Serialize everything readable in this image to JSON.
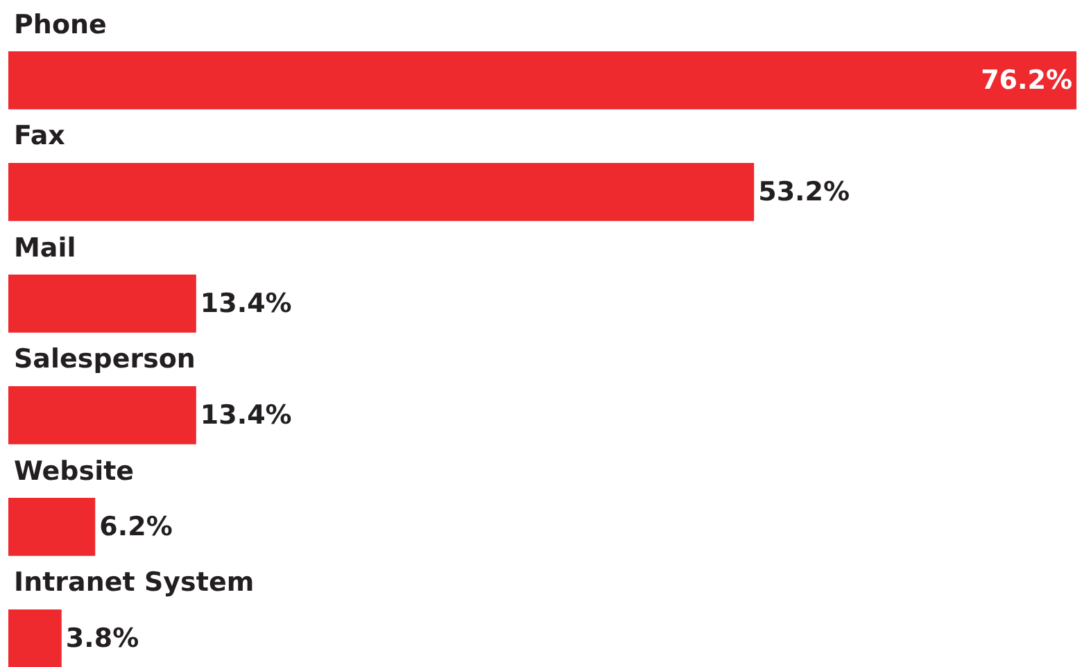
{
  "chart_data": {
    "type": "bar",
    "orientation": "horizontal",
    "categories": [
      "Phone",
      "Fax",
      "Mail",
      "Salesperson",
      "Website",
      "Intranet System"
    ],
    "values": [
      76.2,
      53.2,
      13.4,
      13.4,
      6.2,
      3.8
    ],
    "value_labels": [
      "76.2%",
      "53.2%",
      "13.4%",
      "13.4%",
      "6.2%",
      "3.8%"
    ],
    "color": "#ee2a2f",
    "xlim": [
      0,
      76.2
    ],
    "legend": false
  }
}
